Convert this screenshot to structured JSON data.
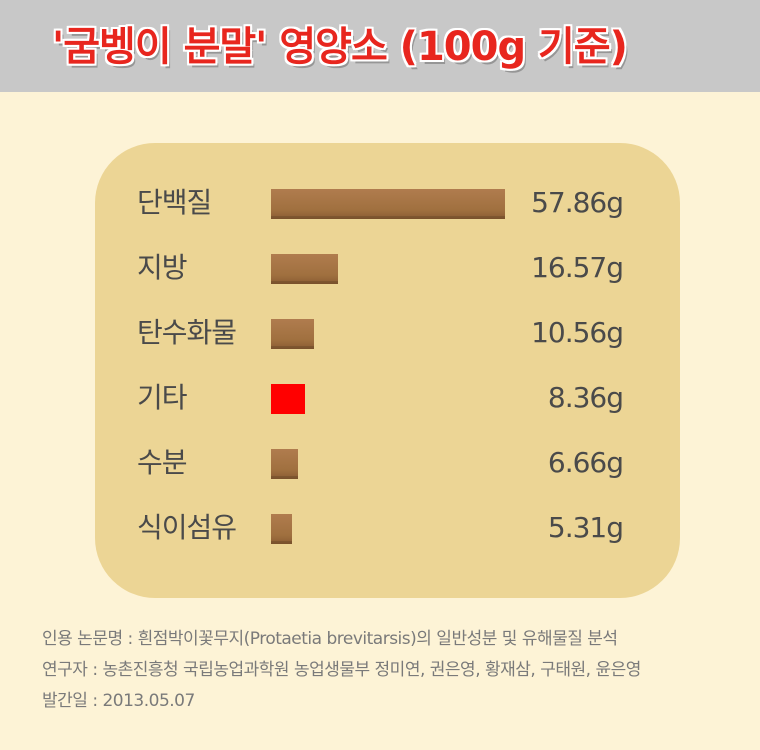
{
  "title": "'굼벵이 분말' 영양소 (100g 기준)",
  "chart_data": {
    "type": "bar",
    "orientation": "horizontal",
    "categories": [
      "단백질",
      "지방",
      "탄수화물",
      "기타",
      "수분",
      "식이섬유"
    ],
    "values": [
      57.86,
      16.57,
      10.56,
      8.36,
      6.66,
      5.31
    ],
    "value_labels": [
      "57.86g",
      "16.57g",
      "10.56g",
      "8.36g",
      "6.66g",
      "5.31g"
    ],
    "unit": "g",
    "highlight_index": 3,
    "colors": {
      "bar": "#a8764a",
      "highlight": "#ff0000",
      "card": "#ecd595"
    }
  },
  "footer": {
    "line1": "인용 논문명 : 흰점박이꽃무지(Protaetia brevitarsis)의 일반성분 및 유해물질 분석",
    "line2": "연구자 : 농촌진흥청 국립농업과학원 농업생물부 정미연, 권은영, 황재삼, 구태원, 윤은영",
    "line3": "발간일 : 2013.05.07"
  }
}
